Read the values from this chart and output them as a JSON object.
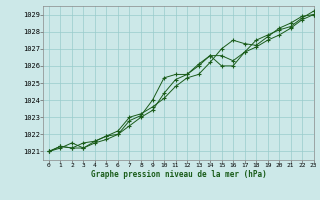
{
  "title": "Graphe pression niveau de la mer (hPa)",
  "bg_color": "#cce8e8",
  "grid_color": "#99cccc",
  "line_color": "#1a5c1a",
  "xlim": [
    -0.5,
    23
  ],
  "ylim": [
    1020.5,
    1029.5
  ],
  "yticks": [
    1021,
    1022,
    1023,
    1024,
    1025,
    1026,
    1027,
    1028,
    1029
  ],
  "xticks": [
    0,
    1,
    2,
    3,
    4,
    5,
    6,
    7,
    8,
    9,
    10,
    11,
    12,
    13,
    14,
    15,
    16,
    17,
    18,
    19,
    20,
    21,
    22,
    23
  ],
  "series": [
    [
      1021.0,
      1021.3,
      1021.2,
      1021.5,
      1021.6,
      1021.9,
      1022.0,
      1022.8,
      1023.1,
      1024.0,
      1025.3,
      1025.5,
      1025.5,
      1026.0,
      1026.6,
      1026.6,
      1026.3,
      1026.8,
      1027.1,
      1027.5,
      1027.8,
      1028.2,
      1028.7,
      1029.0
    ],
    [
      1021.0,
      1021.2,
      1021.5,
      1021.2,
      1021.6,
      1021.9,
      1022.2,
      1023.0,
      1023.2,
      1023.6,
      1024.1,
      1024.8,
      1025.3,
      1025.5,
      1026.2,
      1027.0,
      1027.5,
      1027.3,
      1027.2,
      1027.7,
      1028.2,
      1028.5,
      1028.9,
      1029.0
    ],
    [
      1021.0,
      1021.3,
      1021.2,
      1021.2,
      1021.5,
      1021.7,
      1022.0,
      1022.5,
      1023.0,
      1023.4,
      1024.4,
      1025.2,
      1025.5,
      1026.1,
      1026.6,
      1026.0,
      1026.0,
      1026.8,
      1027.5,
      1027.8,
      1028.1,
      1028.3,
      1028.8,
      1029.2
    ]
  ]
}
